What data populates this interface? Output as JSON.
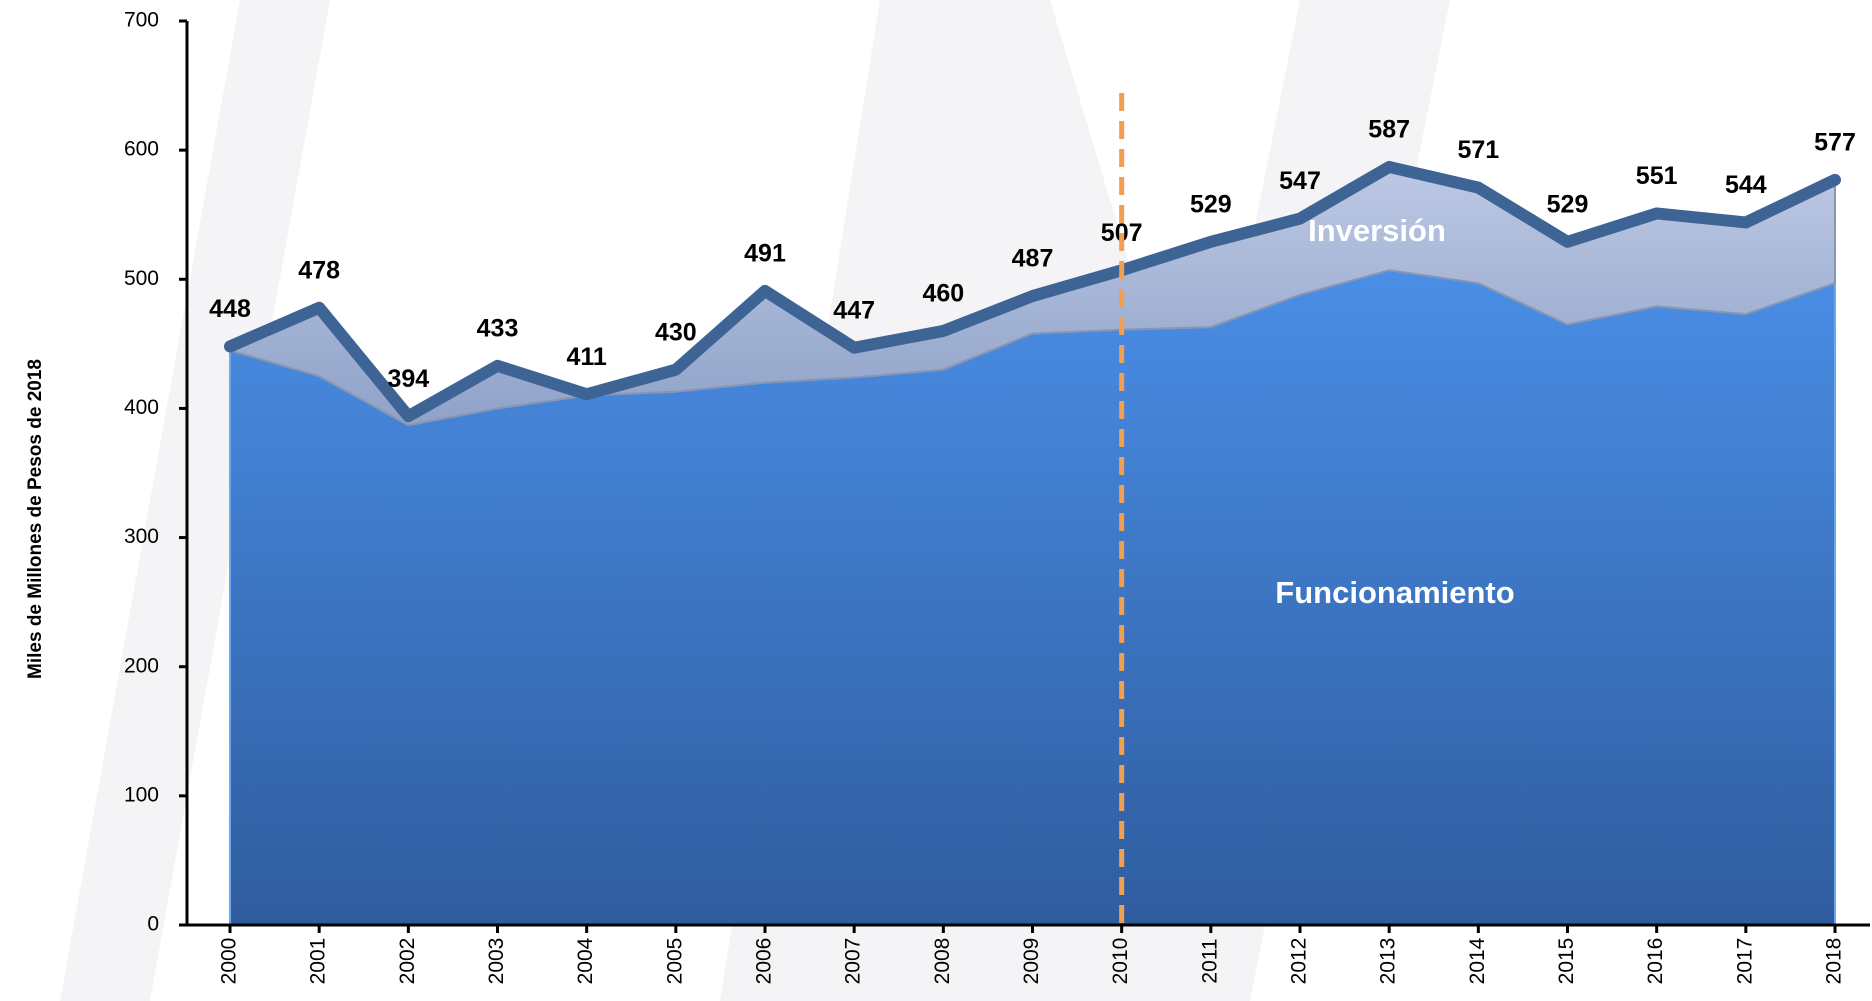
{
  "chart_data": {
    "type": "stacked_area",
    "y_label": "Miles de Millones  de Pesos de 2018",
    "categories": [
      "2000",
      "2001",
      "2002",
      "2003",
      "2004",
      "2005",
      "2006",
      "2007",
      "2008",
      "2009",
      "2010",
      "2011",
      "2012",
      "2013",
      "2014",
      "2015",
      "2016",
      "2017",
      "2018"
    ],
    "series": [
      {
        "name": "Funcionamiento",
        "color": "#3f7fd6",
        "values": [
          445,
          425,
          387,
          400,
          410,
          413,
          420,
          424,
          430,
          458,
          461,
          463,
          488,
          507,
          497,
          465,
          479,
          473,
          497
        ]
      },
      {
        "name": "Inversión",
        "color": "#a3b4d6",
        "values": [
          3,
          53,
          7,
          33,
          1,
          17,
          71,
          23,
          30,
          29,
          46,
          66,
          59,
          80,
          74,
          64,
          72,
          71,
          80
        ]
      }
    ],
    "totals": {
      "color": "#3d6494",
      "values": [
        448,
        478,
        394,
        433,
        411,
        430,
        491,
        447,
        460,
        487,
        507,
        529,
        547,
        587,
        571,
        529,
        551,
        544,
        577
      ]
    },
    "reference_line": {
      "x": "2010",
      "color": "#f0a050"
    },
    "ylim": [
      0,
      700
    ],
    "yticks": [
      0,
      100,
      200,
      300,
      400,
      500,
      600,
      700
    ]
  }
}
